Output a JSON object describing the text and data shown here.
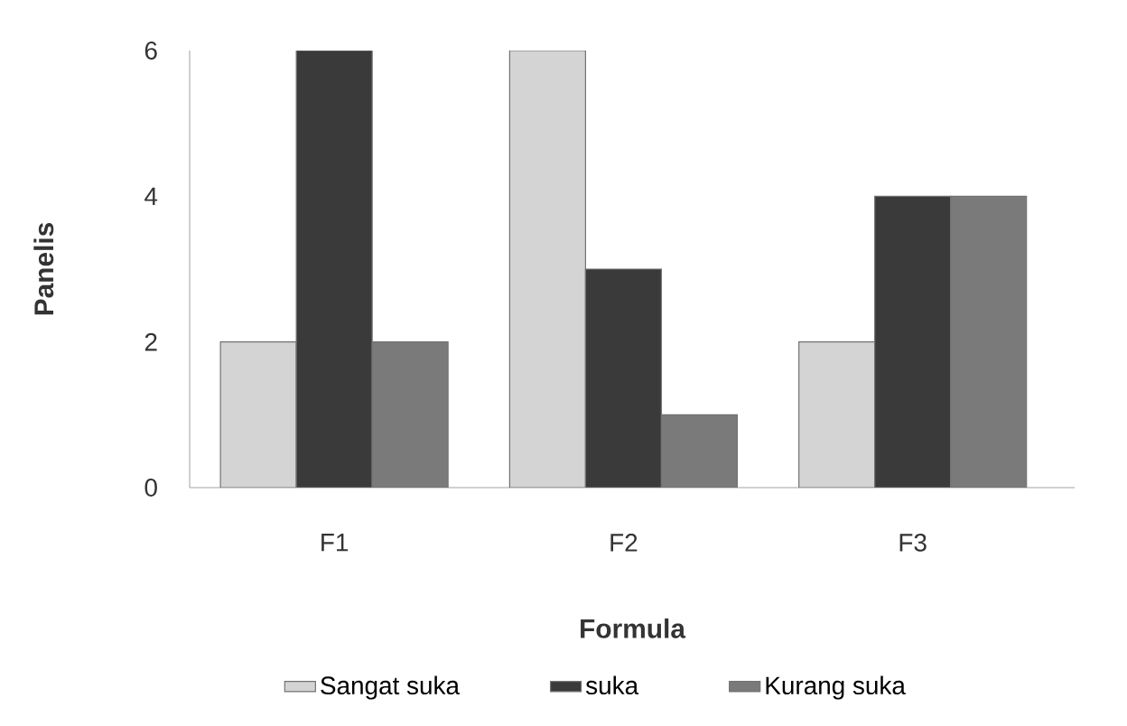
{
  "chart_data": {
    "type": "bar",
    "xlabel": "Formula",
    "ylabel": "Panelis",
    "categories": [
      "F1",
      "F2",
      "F3"
    ],
    "series": [
      {
        "name": "Sangat suka",
        "color": "#d4d4d4",
        "values": [
          2,
          6,
          2
        ]
      },
      {
        "name": "suka",
        "color": "#3a3a3a",
        "values": [
          6,
          3,
          4
        ]
      },
      {
        "name": "Kurang suka",
        "color": "#7a7a7a",
        "values": [
          2,
          1,
          4
        ]
      }
    ],
    "ylim": [
      0,
      6
    ],
    "yticks": [
      0,
      2,
      4,
      6
    ],
    "legend": "bottom"
  }
}
